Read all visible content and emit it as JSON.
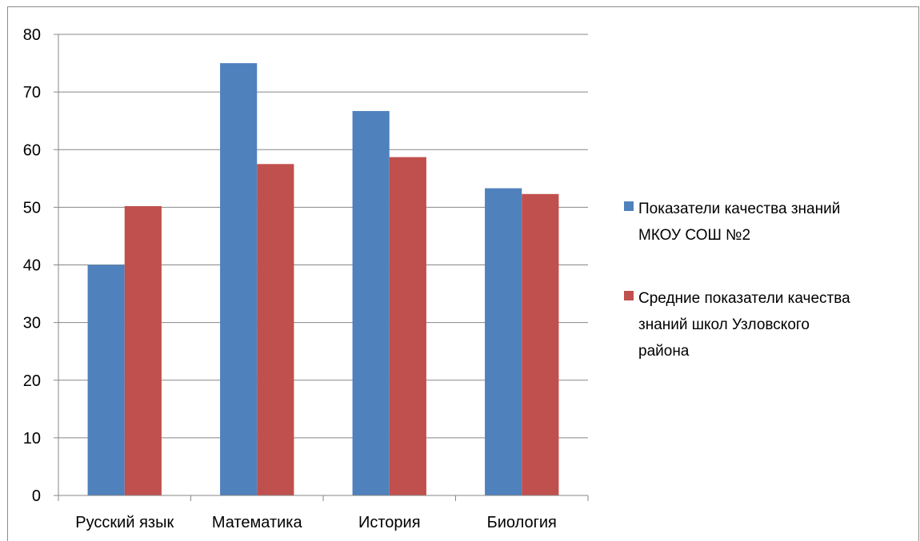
{
  "chart_data": {
    "type": "bar",
    "categories": [
      "Русский язык",
      "Математика",
      "История",
      "Биология"
    ],
    "series": [
      {
        "name": "Показатели качества знаний МКОУ СОШ №2",
        "color": "#4f81bd",
        "values": [
          40,
          75,
          66.7,
          53.3
        ]
      },
      {
        "name": "Средние показатели качества знаний школ Узловского района",
        "color": "#c0504d",
        "values": [
          50.2,
          57.5,
          58.7,
          52.3
        ]
      }
    ],
    "ylim": [
      0,
      80
    ],
    "yticks": [
      0,
      10,
      20,
      30,
      40,
      50,
      60,
      70,
      80
    ],
    "grid": true,
    "legend_position": "right"
  },
  "legend": {
    "items": [
      {
        "lines": [
          "Показатели качества знаний",
          "МКОУ СОШ №2"
        ]
      },
      {
        "lines": [
          "Средние показатели качества",
          "знаний школ Узловского",
          "района"
        ]
      }
    ]
  }
}
